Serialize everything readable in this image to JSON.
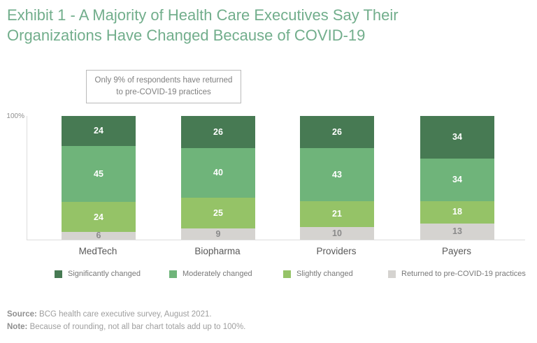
{
  "header": {
    "title_line1": "Exhibit 1 - A Majority of Health Care Executives Say Their",
    "title_line2": "Organizations Have Changed Because of COVID-19"
  },
  "annotation": {
    "text": "Only 9% of respondents have returned to pre-COVID-19 practices"
  },
  "chart_data": {
    "type": "bar",
    "stacked": true,
    "orientation": "vertical",
    "categories": [
      "MedTech",
      "Biopharma",
      "Providers",
      "Payers"
    ],
    "series": [
      {
        "name": "Significantly changed",
        "color": "#477A53",
        "values": [
          24,
          26,
          26,
          34
        ]
      },
      {
        "name": "Moderately changed",
        "color": "#6FB47A",
        "values": [
          45,
          40,
          43,
          34
        ]
      },
      {
        "name": "Slightly changed",
        "color": "#95C367",
        "values": [
          24,
          25,
          21,
          18
        ]
      },
      {
        "name": "Returned to pre-COVID-19 practices",
        "color": "#D5D3D0",
        "values": [
          6,
          9,
          10,
          13
        ]
      }
    ],
    "y_axis_top_label": "100%",
    "ylim": [
      0,
      100
    ],
    "grid": false,
    "legend_position": "bottom",
    "value_label_color": "#ffffff",
    "value_label_color_last_series": "#8a8a8a"
  },
  "footer": {
    "source_label": "Source:",
    "source_text": " BCG health care executive survey, August 2021.",
    "note_label": "Note:",
    "note_text": " Because of rounding, not all bar chart totals add up to 100%."
  },
  "colors": {
    "title": "#72AE8C",
    "axis_line": "#dcdcdc",
    "annotation_border": "#b9b9b9",
    "annotation_text": "#7f7f7f"
  }
}
